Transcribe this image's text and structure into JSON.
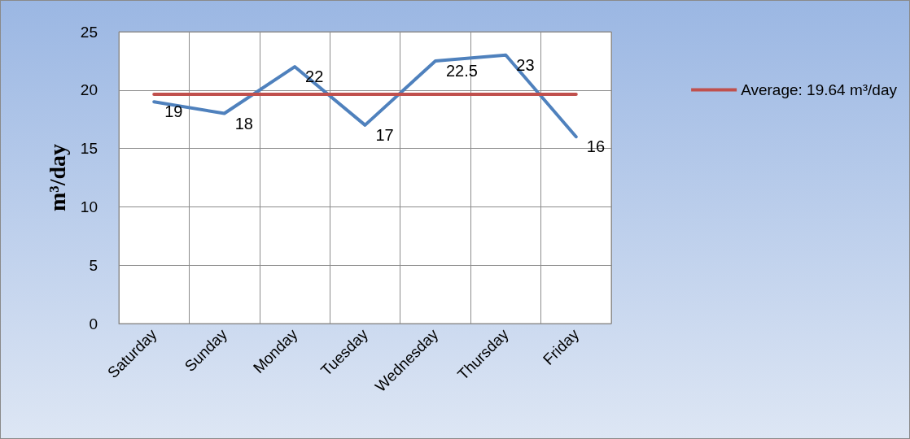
{
  "chart_data": {
    "type": "line",
    "ylabel": "m³/day",
    "categories": [
      "Saturday",
      "Sunday",
      "Monday",
      "Tuesday",
      "Wednesday",
      "Thursday",
      "Friday"
    ],
    "series": [
      {
        "color": "#4f81bd",
        "values": [
          19,
          18,
          22,
          17,
          22.5,
          23,
          16
        ],
        "value_labels": [
          "19",
          "18",
          "22",
          "17",
          "22.5",
          "23",
          "16"
        ]
      },
      {
        "name": "Average: 19.64 m³/day",
        "color": "#c0504d",
        "values": [
          19.64,
          19.64,
          19.64,
          19.64,
          19.64,
          19.64,
          19.64
        ]
      }
    ],
    "ylim": [
      0,
      25
    ],
    "yticks": [
      0,
      5,
      10,
      15,
      20,
      25
    ],
    "grid": true,
    "legend": "right",
    "marker": "none",
    "line_style": "solid"
  }
}
